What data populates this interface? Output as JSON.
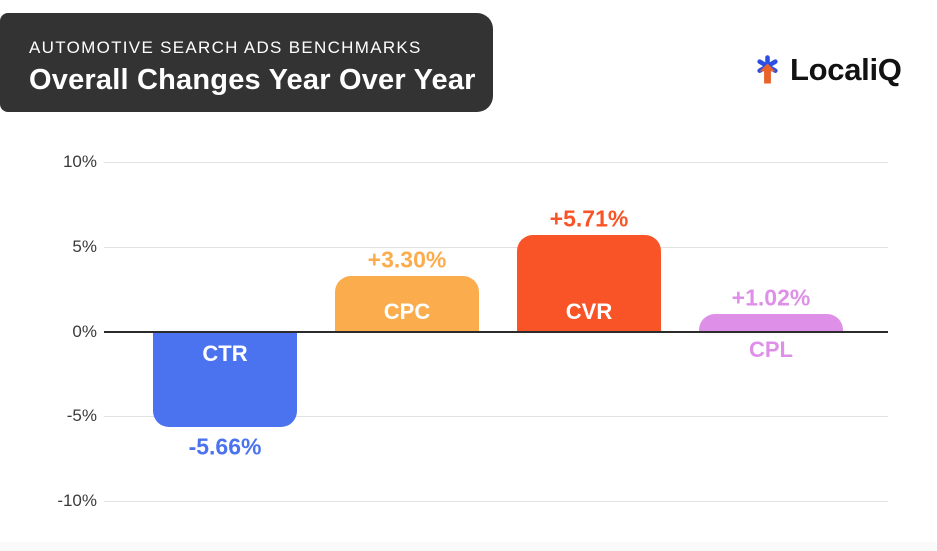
{
  "header": {
    "eyebrow": "AUTOMOTIVE SEARCH ADS BENCHMARKS",
    "title": "Overall Changes Year Over Year",
    "bg_color": "#333333",
    "text_color": "#FFFFFF"
  },
  "logo": {
    "text": "LocaliQ",
    "text_color": "#121212",
    "icon": "localiq-asterisk-arrow-icon",
    "icon_blue": "#2B4FE4",
    "icon_orange": "#E8622C"
  },
  "chart_data": {
    "type": "bar",
    "title": "Overall Changes Year Over Year",
    "subtitle": "AUTOMOTIVE SEARCH ADS BENCHMARKS",
    "categories": [
      "CTR",
      "CPC",
      "CVR",
      "CPL"
    ],
    "values": [
      -5.66,
      3.3,
      5.71,
      1.02
    ],
    "value_labels": [
      "-5.66%",
      "+3.30%",
      "+5.71%",
      "+1.02%"
    ],
    "bar_colors": [
      "#4C73EF",
      "#FBAC4D",
      "#F95428",
      "#DE8FE8"
    ],
    "y_ticks": [
      "10%",
      "5%",
      "0%",
      "-5%",
      "-10%"
    ],
    "y_tick_values": [
      10,
      5,
      0,
      -5,
      -10
    ],
    "ylim": [
      -10,
      10
    ],
    "xlabel": "",
    "ylabel": "",
    "grid": true,
    "legend": "none",
    "zero_line_color": "#2B2B2B",
    "grid_color": "#E2E2E2"
  }
}
